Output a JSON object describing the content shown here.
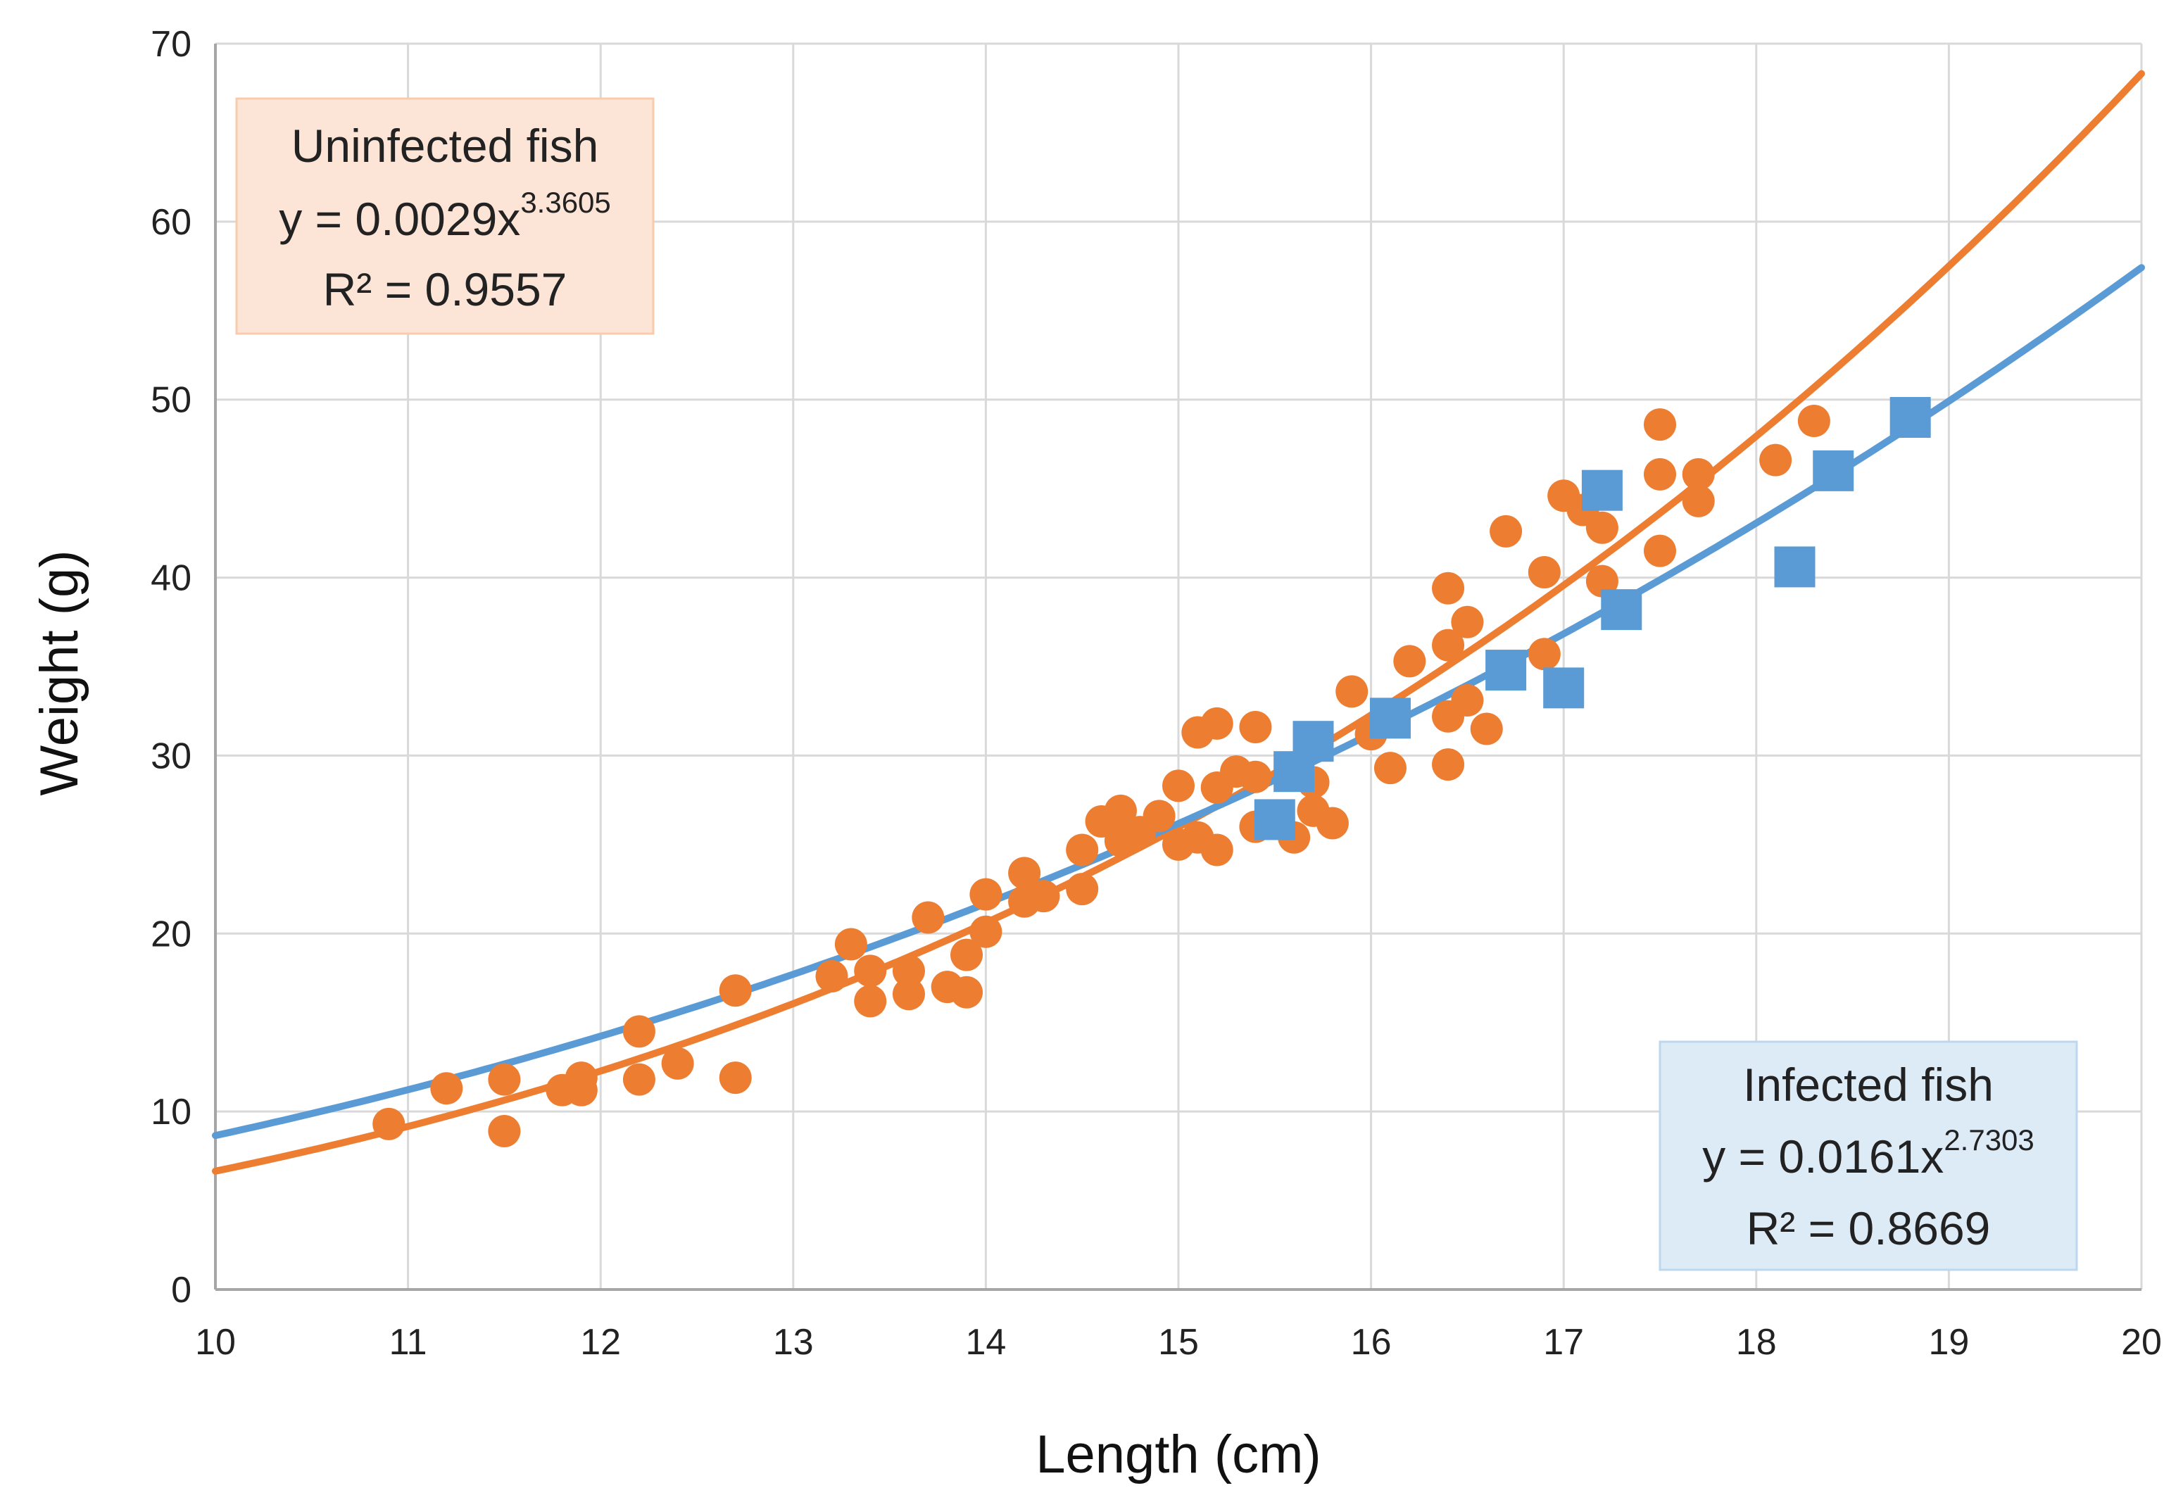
{
  "chart_data": {
    "type": "scatter",
    "xlabel": "Length (cm)",
    "ylabel": "Weight (g)",
    "xlim": [
      10,
      20
    ],
    "ylim": [
      0,
      70
    ],
    "x_ticks": [
      "10",
      "11",
      "12",
      "13",
      "14",
      "15",
      "16",
      "17",
      "18",
      "19",
      "20"
    ],
    "y_ticks": [
      "0",
      "10",
      "20",
      "30",
      "40",
      "50",
      "60",
      "70"
    ],
    "grid": true,
    "series": [
      {
        "name": "Uninfected fish",
        "marker": "circle",
        "color": "#ED7D31",
        "trendline": {
          "type": "power",
          "a": 0.0029,
          "b": 3.3605,
          "label": "Uninfected fish",
          "equation_base": "y = 0.0029x",
          "equation_exp": "3.3605",
          "r2_text": "R² = 0.9557"
        },
        "points": [
          [
            10.9,
            9.3
          ],
          [
            11.2,
            11.3
          ],
          [
            11.5,
            11.8
          ],
          [
            11.5,
            8.9
          ],
          [
            11.8,
            11.2
          ],
          [
            11.9,
            11.9
          ],
          [
            11.9,
            11.2
          ],
          [
            12.2,
            14.5
          ],
          [
            12.2,
            11.8
          ],
          [
            12.4,
            12.7
          ],
          [
            12.7,
            16.8
          ],
          [
            12.7,
            11.9
          ],
          [
            13.2,
            17.6
          ],
          [
            13.3,
            19.4
          ],
          [
            13.4,
            17.9
          ],
          [
            13.4,
            16.2
          ],
          [
            13.6,
            17.9
          ],
          [
            13.6,
            16.6
          ],
          [
            13.7,
            20.9
          ],
          [
            13.8,
            17.0
          ],
          [
            13.9,
            18.8
          ],
          [
            13.9,
            16.7
          ],
          [
            14.0,
            22.2
          ],
          [
            14.0,
            20.1
          ],
          [
            14.2,
            23.4
          ],
          [
            14.2,
            21.8
          ],
          [
            14.3,
            22.1
          ],
          [
            14.5,
            24.7
          ],
          [
            14.5,
            22.5
          ],
          [
            14.6,
            26.3
          ],
          [
            14.7,
            26.9
          ],
          [
            14.7,
            25.2
          ],
          [
            14.8,
            25.7
          ],
          [
            14.9,
            26.6
          ],
          [
            15.0,
            28.3
          ],
          [
            15.0,
            25.0
          ],
          [
            15.1,
            31.3
          ],
          [
            15.1,
            25.4
          ],
          [
            15.2,
            31.8
          ],
          [
            15.2,
            28.2
          ],
          [
            15.2,
            24.7
          ],
          [
            15.3,
            29.1
          ],
          [
            15.4,
            31.6
          ],
          [
            15.4,
            28.8
          ],
          [
            15.4,
            26.0
          ],
          [
            15.6,
            25.4
          ],
          [
            15.7,
            28.5
          ],
          [
            15.7,
            26.9
          ],
          [
            15.8,
            26.2
          ],
          [
            15.9,
            33.6
          ],
          [
            16.0,
            31.2
          ],
          [
            16.1,
            29.3
          ],
          [
            16.2,
            35.3
          ],
          [
            16.4,
            39.4
          ],
          [
            16.4,
            36.2
          ],
          [
            16.4,
            32.2
          ],
          [
            16.4,
            29.5
          ],
          [
            16.5,
            37.5
          ],
          [
            16.5,
            33.1
          ],
          [
            16.6,
            31.5
          ],
          [
            16.7,
            42.6
          ],
          [
            16.9,
            40.3
          ],
          [
            16.9,
            35.7
          ],
          [
            17.0,
            44.6
          ],
          [
            17.1,
            43.8
          ],
          [
            17.2,
            42.8
          ],
          [
            17.2,
            39.8
          ],
          [
            17.5,
            48.6
          ],
          [
            17.5,
            45.8
          ],
          [
            17.5,
            41.5
          ],
          [
            17.7,
            45.8
          ],
          [
            17.7,
            44.3
          ],
          [
            18.1,
            46.6
          ],
          [
            18.3,
            48.8
          ]
        ]
      },
      {
        "name": "Infected fish",
        "marker": "square",
        "color": "#5B9BD5",
        "trendline": {
          "type": "power",
          "a": 0.0161,
          "b": 2.7303,
          "label": "Infected fish",
          "equation_base": "y = 0.0161x",
          "equation_exp": "2.7303",
          "r2_text": "R² = 0.8669"
        },
        "points": [
          [
            15.5,
            26.4
          ],
          [
            15.6,
            29.1
          ],
          [
            15.7,
            30.8
          ],
          [
            16.1,
            32.1
          ],
          [
            16.7,
            34.8
          ],
          [
            17.0,
            33.8
          ],
          [
            17.2,
            44.9
          ],
          [
            17.3,
            38.2
          ],
          [
            18.2,
            40.6
          ],
          [
            18.4,
            46.0
          ],
          [
            18.8,
            49.0
          ]
        ]
      }
    ],
    "colors": {
      "uninfected_box_bg": "#FCE4D6",
      "uninfected_box_border": "#F8CBAD",
      "infected_box_bg": "#DDEBF7",
      "infected_box_border": "#BDD7EE",
      "grid": "#D9D9D9",
      "axis": "#A6A6A6"
    }
  }
}
